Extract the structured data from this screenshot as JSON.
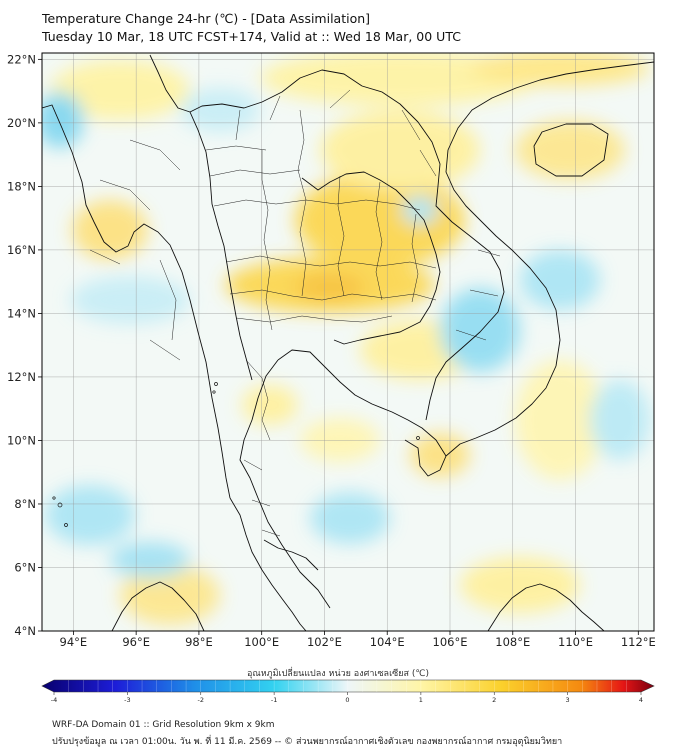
{
  "header": {
    "title_line1": "Temperature Change 24-hr (℃) - [Data Assimilation]",
    "title_line2": "Tuesday 10 Mar, 18 UTC FCST+174, Valid at :: Wed 18 Mar, 00 UTC"
  },
  "map": {
    "lon_ticks": [
      "94°E",
      "96°E",
      "98°E",
      "100°E",
      "102°E",
      "104°E",
      "106°E",
      "108°E",
      "110°E",
      "112°E"
    ],
    "lat_ticks": [
      "22°N",
      "20°N",
      "18°N",
      "16°N",
      "14°N",
      "12°N",
      "10°N",
      "8°N",
      "6°N",
      "4°N"
    ]
  },
  "colorbar": {
    "label": "อุณหภูมิเปลี่ยนแปลง หน่วย องศาเซลเซียส (℃)",
    "ticks": [
      "-4",
      "-3",
      "-2",
      "-1",
      "0",
      "1",
      "2",
      "3",
      "4"
    ],
    "colors": [
      "#08006e",
      "#1d1dd8",
      "#1f8fe8",
      "#33d2f0",
      "#eef6f8",
      "#fff5a6",
      "#fbd12c",
      "#f58a10",
      "#e51515",
      "#7a0010"
    ]
  },
  "footer": {
    "line1": "WRF-DA Domain 01 :: Grid Resolution 9km x 9km",
    "line2": "ปรับปรุงข้อมูล ณ เวลา 01:00น. วัน พ. ที่ 11 มี.ค. 2569 -- © ส่วนพยากรณ์อากาศเชิงตัวเลข กองพยากรณ์อากาศ กรมอุตุนิยมวิทยา"
  }
}
